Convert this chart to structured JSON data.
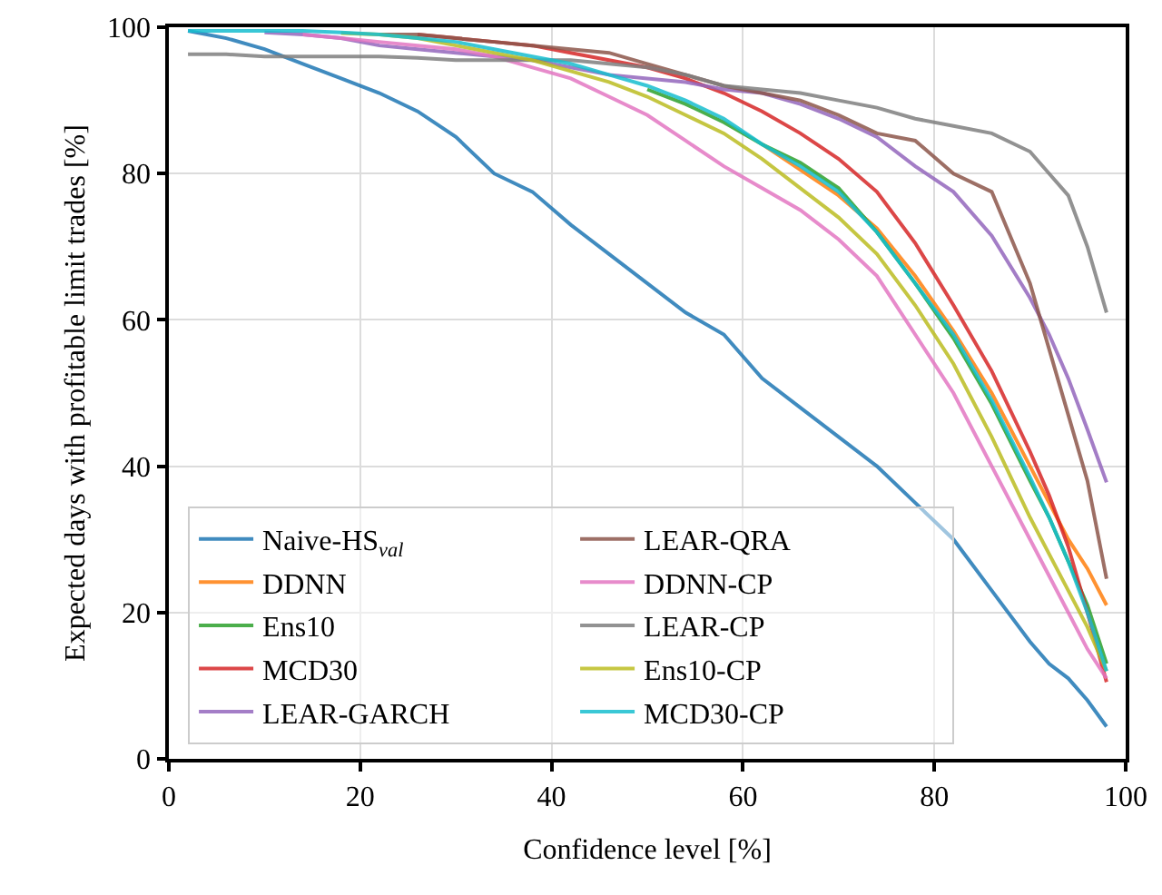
{
  "chart_data": {
    "type": "line",
    "xlabel": "Confidence level [%]",
    "ylabel": "Expected days with profitable limit trades [%]",
    "x": [
      2,
      6,
      10,
      14,
      18,
      22,
      26,
      30,
      34,
      38,
      42,
      46,
      50,
      54,
      58,
      62,
      66,
      70,
      74,
      78,
      82,
      86,
      90,
      92,
      94,
      96,
      98
    ],
    "xlim": [
      0,
      100
    ],
    "xticks": [
      0,
      20,
      40,
      60,
      80,
      100
    ],
    "ylim": [
      0,
      100
    ],
    "yticks": [
      0,
      20,
      40,
      60,
      80,
      100
    ],
    "grid": true,
    "legend": "bottom left",
    "marker": "none",
    "line_style": "solid",
    "series": [
      {
        "name": "Naive-HS$_{val}$",
        "color": "#1f77b4",
        "values": [
          99.5,
          98.5,
          97,
          95,
          93,
          91,
          88.5,
          85,
          80,
          77.5,
          73,
          69,
          65,
          61,
          58,
          52,
          48,
          44,
          40,
          35,
          30,
          23,
          16,
          13,
          11,
          8,
          4.4
        ]
      },
      {
        "name": "DDNN",
        "color": "#ff7f0e",
        "values": [
          null,
          null,
          null,
          null,
          null,
          null,
          null,
          null,
          null,
          null,
          null,
          null,
          null,
          null,
          null,
          84,
          80.5,
          77,
          72.5,
          66,
          58.5,
          50,
          40,
          35,
          30,
          26,
          21
        ]
      },
      {
        "name": "Ens10",
        "color": "#2ca02c",
        "values": [
          null,
          null,
          null,
          null,
          null,
          null,
          null,
          null,
          null,
          null,
          null,
          null,
          91.5,
          89.5,
          87,
          84,
          81.5,
          78,
          72,
          65,
          57.5,
          48.5,
          38,
          33,
          27,
          21,
          13
        ]
      },
      {
        "name": "MCD30",
        "color": "#d62728",
        "values": [
          null,
          null,
          null,
          null,
          null,
          null,
          99,
          98.5,
          98,
          97.5,
          96.5,
          95.5,
          94.5,
          93,
          91,
          88.5,
          85.5,
          82,
          77.5,
          70.5,
          62,
          53,
          42,
          36,
          29,
          20,
          10.5
        ]
      },
      {
        "name": "LEAR-GARCH",
        "color": "#9467bd",
        "values": [
          null,
          null,
          99.3,
          99,
          98.5,
          97.5,
          97,
          96.5,
          96,
          95.5,
          94.5,
          93.5,
          93,
          92.5,
          91.5,
          91,
          89.5,
          87.5,
          85,
          81,
          77.5,
          71.5,
          63,
          58,
          52,
          45,
          37.8
        ]
      },
      {
        "name": "LEAR-QRA",
        "color": "#8c564b",
        "values": [
          null,
          null,
          null,
          null,
          null,
          99,
          99,
          98.5,
          98,
          97.5,
          97,
          96.5,
          95,
          93.5,
          92,
          91,
          90,
          88,
          85.5,
          84.5,
          80,
          77.5,
          65,
          56,
          47,
          38,
          24.6
        ]
      },
      {
        "name": "DDNN-CP",
        "color": "#e377c2",
        "values": [
          null,
          null,
          null,
          99,
          98.5,
          98,
          97.5,
          97,
          96,
          94.5,
          93,
          90.5,
          88,
          84.5,
          81,
          78,
          75,
          71,
          66,
          58,
          50,
          40,
          30,
          25,
          20,
          15,
          11
        ]
      },
      {
        "name": "LEAR-CP",
        "color": "#7f7f7f",
        "values": [
          96.3,
          96.3,
          96,
          96,
          96,
          96,
          95.8,
          95.5,
          95.5,
          95.5,
          95.5,
          95,
          94.5,
          93.5,
          92,
          91.5,
          91,
          90,
          89,
          87.5,
          86.5,
          85.5,
          83,
          80,
          77,
          70,
          61
        ]
      },
      {
        "name": "Ens10-CP",
        "color": "#bcbd22",
        "values": [
          null,
          null,
          null,
          null,
          99.2,
          99,
          98.5,
          97.5,
          96.5,
          95.5,
          94,
          92.5,
          90.5,
          88,
          85.5,
          82,
          78,
          74,
          69,
          62,
          54,
          44,
          33,
          28,
          23,
          18,
          12
        ]
      },
      {
        "name": "MCD30-CP",
        "color": "#17becf",
        "values": [
          99.5,
          99.5,
          99.5,
          99.5,
          99.3,
          99,
          98.5,
          98,
          97,
          96,
          95,
          93.5,
          92,
          90,
          87.5,
          84,
          81,
          77.5,
          72,
          65,
          58,
          49,
          38.5,
          33,
          27,
          20,
          12
        ]
      }
    ]
  }
}
